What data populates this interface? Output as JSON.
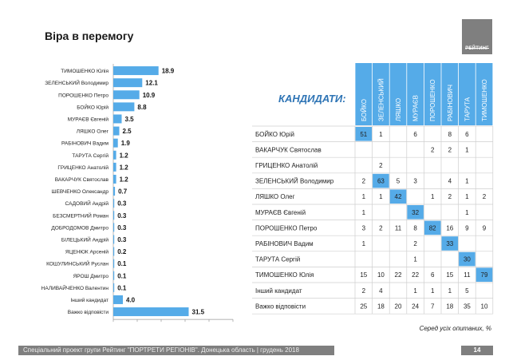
{
  "page": {
    "title": "Віра в перемогу",
    "logo_text": "РЕЙТИНГ",
    "footer": "Спеціальний проект групи Рейтинг \"ПОРТРЕТИ РЕГІОНІВ\". Донецька область | грудень 2018",
    "page_number": "14",
    "note": "Серед усіх опитаних, %"
  },
  "colors": {
    "bar": "#55abe8",
    "header": "#55abe8",
    "grey": "#7f7f7f"
  },
  "chart_data": [
    {
      "type": "bar",
      "orientation": "horizontal",
      "categories": [
        "ТИМОШЕНКО Юлія",
        "ЗЕЛЕНСЬКИЙ Володимир",
        "ПОРОШЕНКО Петро",
        "БОЙКО Юрій",
        "МУРАЄВ Євгеній",
        "ЛЯШКО Олег",
        "РАБІНОВИЧ Вадим",
        "ТАРУТА Сергій",
        "ГРИЦЕНКО Анатолій",
        "ВАКАРЧУК Святослав",
        "ШЕВЧЕНКО Олександр",
        "САДОВИЙ Андрій",
        "БЕЗСМЕРТНИЙ Роман",
        "ДОБРОДОМОВ Дмитро",
        "БІЛЕЦЬКИЙ Андрій",
        "ЯЦЕНЮК Арсеній",
        "КОШУЛИНСЬКИЙ Руслан",
        "ЯРОШ Дмитро",
        "НАЛИВАЙЧЕНКО Валентин",
        "Інший кандидат",
        "Важко відповісти"
      ],
      "values": [
        18.9,
        12.1,
        10.9,
        8.8,
        3.5,
        2.5,
        1.9,
        1.2,
        1.2,
        1.2,
        0.7,
        0.3,
        0.3,
        0.3,
        0.3,
        0.2,
        0.1,
        0.1,
        0.1,
        4.0,
        31.5
      ],
      "labels": [
        "18.9",
        "12.1",
        "10.9",
        "8.8",
        "3.5",
        "2.5",
        "1.9",
        "1.2",
        "1.2",
        "1.2",
        "0.7",
        "0.3",
        "0.3",
        "0.3",
        "0.3",
        "0.2",
        "0.1",
        "0.1",
        "0.1",
        "4.0",
        "31.5"
      ],
      "xlim": [
        0,
        50
      ],
      "xticks": [
        "0",
        "10",
        "20",
        "30",
        "40",
        "50"
      ]
    },
    {
      "type": "table",
      "title": "КАНДИДАТИ:",
      "columns": [
        "БОЙКО",
        "ЗЕЛЕНСЬКИЙ",
        "ЛЯШКО",
        "МУРАЄВ",
        "ПОРОШЕНКО",
        "РАБІНОВИЧ",
        "ТАРУТА",
        "ТИМОШЕНКО"
      ],
      "rows": [
        {
          "label": "БОЙКО Юрій",
          "cells": [
            "51",
            "1",
            "",
            "6",
            "",
            "8",
            "6",
            ""
          ]
        },
        {
          "label": "ВАКАРЧУК Святослав",
          "cells": [
            "",
            "",
            "",
            "",
            "2",
            "2",
            "1",
            ""
          ]
        },
        {
          "label": "ГРИЦЕНКО Анатолій",
          "cells": [
            "",
            "2",
            "",
            "",
            "",
            "",
            "",
            ""
          ]
        },
        {
          "label": "ЗЕЛЕНСЬКИЙ Володимир",
          "cells": [
            "2",
            "63",
            "5",
            "3",
            "",
            "4",
            "1",
            ""
          ]
        },
        {
          "label": "ЛЯШКО Олег",
          "cells": [
            "1",
            "1",
            "42",
            "",
            "1",
            "2",
            "1",
            "2"
          ]
        },
        {
          "label": "МУРАЄВ Євгеній",
          "cells": [
            "1",
            "",
            "",
            "32",
            "",
            "",
            "1",
            ""
          ]
        },
        {
          "label": "ПОРОШЕНКО Петро",
          "cells": [
            "3",
            "2",
            "11",
            "8",
            "82",
            "16",
            "9",
            "9"
          ]
        },
        {
          "label": "РАБІНОВИЧ Вадим",
          "cells": [
            "1",
            "",
            "",
            "2",
            "",
            "33",
            "",
            ""
          ]
        },
        {
          "label": "ТАРУТА Сергій",
          "cells": [
            "",
            "",
            "",
            "1",
            "",
            "",
            "30",
            ""
          ]
        },
        {
          "label": "ТИМОШЕНКО Юлія",
          "cells": [
            "15",
            "10",
            "22",
            "22",
            "6",
            "15",
            "11",
            "79"
          ]
        },
        {
          "label": "Інший кандидат",
          "cells": [
            "2",
            "4",
            "",
            "1",
            "1",
            "1",
            "5",
            ""
          ]
        },
        {
          "label": "Важко відповісти",
          "cells": [
            "25",
            "18",
            "20",
            "24",
            "7",
            "18",
            "35",
            "10"
          ]
        }
      ],
      "highlight": [
        [
          0,
          0
        ],
        [
          3,
          1
        ],
        [
          4,
          2
        ],
        [
          5,
          3
        ],
        [
          6,
          4
        ],
        [
          7,
          5
        ],
        [
          8,
          6
        ],
        [
          9,
          7
        ]
      ]
    }
  ]
}
